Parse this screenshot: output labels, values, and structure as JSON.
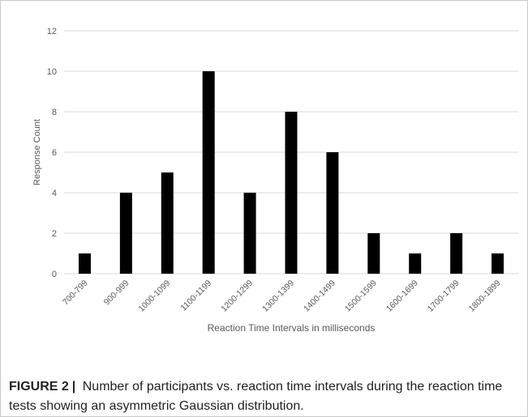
{
  "chart_data": {
    "type": "bar",
    "title": "",
    "xlabel": "Reaction Time Intervals in milliseconds",
    "ylabel": "Response Count",
    "categories": [
      "700-799",
      "900-999",
      "1000-1099",
      "1100-1199",
      "1200-1299",
      "1300-1399",
      "1400-1499",
      "1500-1599",
      "1600-1699",
      "1700-1799",
      "1800-1899"
    ],
    "values": [
      1,
      4,
      5,
      10,
      4,
      8,
      6,
      2,
      1,
      2,
      1
    ],
    "ylim": [
      0,
      12
    ],
    "yticks": [
      0,
      2,
      4,
      6,
      8,
      10,
      12
    ],
    "grid": true,
    "colors": {
      "bar": "#000000",
      "grid": "#d9d9d9",
      "tick_text": "#595959"
    }
  },
  "caption": {
    "label": "FIGURE 2",
    "separator": "|",
    "text": "Number of participants vs. reaction time intervals during the reaction time tests showing an asymmetric Gaussian distribution."
  }
}
